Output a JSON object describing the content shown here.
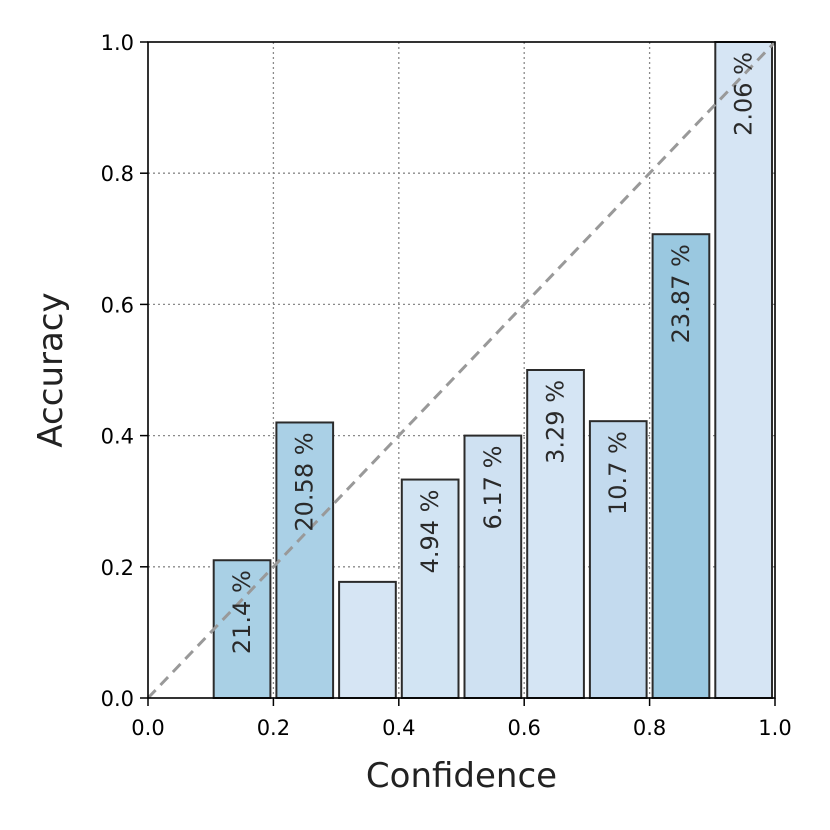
{
  "chart_data": {
    "type": "bar",
    "xlabel": "Confidence",
    "ylabel": "Accuracy",
    "xlim": [
      0,
      1
    ],
    "ylim": [
      0,
      1
    ],
    "grid": true,
    "xticks": [
      "0.0",
      "0.2",
      "0.4",
      "0.6",
      "0.8",
      "1.0"
    ],
    "yticks": [
      "0.0",
      "0.2",
      "0.4",
      "0.6",
      "0.8",
      "1.0"
    ],
    "bins": [
      {
        "x0": 0.1,
        "x1": 0.2,
        "accuracy": 0.21,
        "label": "21.4 %",
        "color": "#a9d0e5"
      },
      {
        "x0": 0.2,
        "x1": 0.3,
        "accuracy": 0.42,
        "label": "20.58 %",
        "color": "#aad0e6"
      },
      {
        "x0": 0.3,
        "x1": 0.4,
        "accuracy": 0.177,
        "label": "",
        "color": "#d6e5f4"
      },
      {
        "x0": 0.4,
        "x1": 0.5,
        "accuracy": 0.333,
        "label": "4.94 %",
        "color": "#d2e4f3"
      },
      {
        "x0": 0.5,
        "x1": 0.6,
        "accuracy": 0.4,
        "label": "6.17 %",
        "color": "#cfe1f2"
      },
      {
        "x0": 0.6,
        "x1": 0.7,
        "accuracy": 0.5,
        "label": "3.29 %",
        "color": "#d5e5f4"
      },
      {
        "x0": 0.7,
        "x1": 0.8,
        "accuracy": 0.422,
        "label": "10.7 %",
        "color": "#c3daee"
      },
      {
        "x0": 0.8,
        "x1": 0.9,
        "accuracy": 0.707,
        "label": "23.87 %",
        "color": "#9ac8e0"
      },
      {
        "x0": 0.9,
        "x1": 1.0,
        "accuracy": 1.0,
        "label": "2.06 %",
        "color": "#d6e5f4"
      }
    ],
    "diagonal": {
      "from": [
        0,
        0
      ],
      "to": [
        1,
        1
      ],
      "color": "#999999"
    }
  }
}
